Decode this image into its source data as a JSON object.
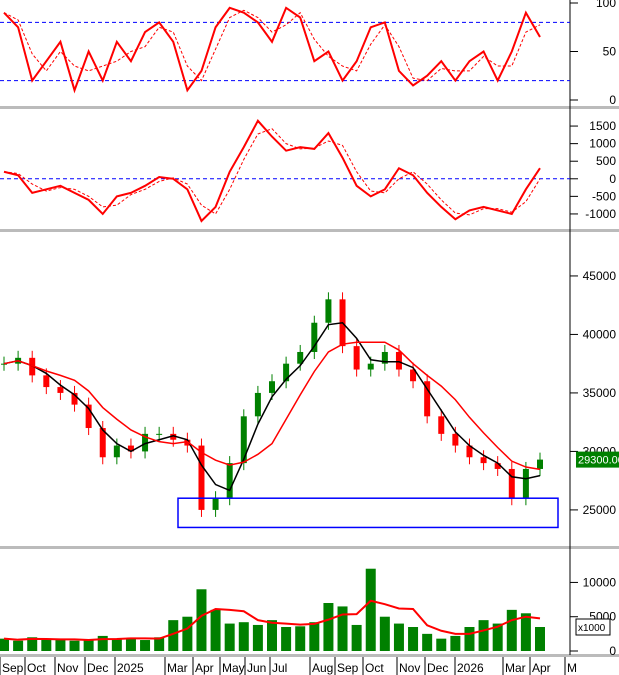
{
  "chart_data": [
    {
      "panel": "stochastic",
      "type": "line",
      "yticks": [
        0,
        50,
        100
      ],
      "ylim": [
        0,
        100
      ],
      "levels": [
        20,
        80
      ],
      "colors": {
        "line": "#ff0000",
        "signal": "#ff0000",
        "level": "#0000ff"
      },
      "values": [
        90,
        75,
        20,
        40,
        60,
        10,
        50,
        20,
        60,
        40,
        70,
        80,
        60,
        10,
        30,
        75,
        95,
        90,
        80,
        60,
        95,
        85,
        40,
        50,
        20,
        40,
        75,
        80,
        30,
        15,
        25,
        40,
        20,
        40,
        50,
        20,
        50,
        90,
        65
      ]
    },
    {
      "panel": "macd",
      "type": "line",
      "yticks": [
        -1000,
        -500,
        0,
        500,
        1000,
        1500
      ],
      "ylim": [
        -1400,
        1900
      ],
      "levels": [
        0
      ],
      "colors": {
        "line": "#ff0000",
        "level": "#0000ff"
      },
      "values": [
        200,
        100,
        -400,
        -300,
        -200,
        -400,
        -600,
        -1000,
        -500,
        -400,
        -200,
        50,
        0,
        -300,
        -1200,
        -800,
        200,
        900,
        1650,
        1200,
        800,
        900,
        850,
        1300,
        600,
        -200,
        -500,
        -300,
        300,
        100,
        -400,
        -800,
        -1150,
        -900,
        -800,
        -900,
        -1000,
        -300,
        300
      ]
    },
    {
      "panel": "price",
      "type": "candlestick",
      "yticks": [
        25000,
        30000,
        35000,
        40000,
        45000
      ],
      "ylim": [
        22000,
        48500
      ],
      "last_price_label": "29300.00",
      "colors": {
        "up": "#008000",
        "down": "#ff0000",
        "ma_short": "#000000",
        "ma_long": "#ff0000",
        "box": "#0000ff",
        "label_bg": "#008000"
      },
      "close": [
        37500,
        38000,
        36500,
        35500,
        35000,
        34000,
        32000,
        29500,
        30500,
        30000,
        31500,
        31500,
        31000,
        30500,
        25000,
        26000,
        29000,
        33000,
        35000,
        36000,
        37500,
        38500,
        41000,
        43000,
        39000,
        37000,
        37500,
        38500,
        37000,
        36000,
        33000,
        31500,
        30500,
        29500,
        29000,
        28500,
        26000,
        28500,
        29300
      ],
      "support_box": {
        "price_low": 23500,
        "price_high": 26000
      }
    },
    {
      "panel": "volume",
      "type": "bar",
      "yticks": [
        0,
        5000,
        10000
      ],
      "ylim": [
        0,
        14000
      ],
      "unit_label": "x1000",
      "colors": {
        "bar": "#008000",
        "ma": "#ff0000"
      },
      "values": [
        1800,
        1500,
        2000,
        1700,
        1600,
        1500,
        1600,
        2200,
        1700,
        1900,
        1600,
        2000,
        4500,
        5000,
        9000,
        6000,
        4000,
        4200,
        3800,
        4500,
        3500,
        3600,
        4200,
        7000,
        6500,
        3800,
        12000,
        5000,
        4000,
        3500,
        2500,
        1800,
        2200,
        3500,
        4500,
        4000,
        6000,
        5500,
        3500
      ]
    },
    {
      "panel": "x_axis",
      "xticks": [
        "Sep",
        "Oct",
        "Nov",
        "Dec",
        "2025",
        "Mar",
        "Apr",
        "May",
        "Jun",
        "Jul",
        "Aug",
        "Sep",
        "Oct",
        "Nov",
        "Dec",
        "2026",
        "Mar",
        "Apr",
        "M"
      ]
    }
  ]
}
